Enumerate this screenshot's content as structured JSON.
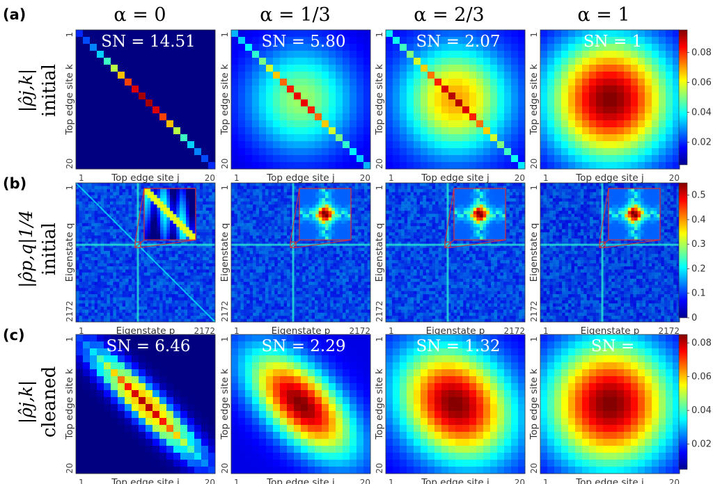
{
  "figure": {
    "column_titles": [
      "α = 0",
      "α = 1/3",
      "α = 2/3",
      "α = 1"
    ],
    "rows": [
      {
        "panel_label": "(a)",
        "ylabel_main": "|ρ̂j,k|",
        "ylabel_sub": "initial",
        "x_axis_label": "Top edge site j",
        "y_axis_label": "Top edge site k",
        "x_ticks": [
          "1",
          "20"
        ],
        "y_ticks": [
          "1",
          "20"
        ],
        "colorbar_ticks": [
          "0.08",
          "0.06",
          "0.04",
          "0.02"
        ],
        "annotations": [
          "SN = 14.51",
          "SN = 5.80",
          "SN = 2.07",
          "SN = 1"
        ]
      },
      {
        "panel_label": "(b)",
        "ylabel_main": "|ρ̂p,q|1/4",
        "ylabel_sub": "initial",
        "x_axis_label": "Eigenstate p",
        "y_axis_label": "Eigenstate q",
        "x_ticks": [
          "1",
          "2172"
        ],
        "y_ticks": [
          "1",
          "2172"
        ],
        "colorbar_ticks": [
          "0.5",
          "0.4",
          "0.3",
          "0.2",
          "0.1",
          "0"
        ],
        "annotations": [
          "",
          "",
          "",
          ""
        ]
      },
      {
        "panel_label": "(c)",
        "ylabel_main": "|ρ̂j,k|",
        "ylabel_sub": "cleaned",
        "x_axis_label": "Top edge site j",
        "y_axis_label": "Top edge site k",
        "x_ticks": [
          "1",
          "20"
        ],
        "y_ticks": [
          "1",
          "20"
        ],
        "colorbar_ticks": [
          "0.08",
          "0.06",
          "0.04",
          "0.02"
        ],
        "annotations": [
          "SN = 6.46",
          "SN = 2.29",
          "SN = 1.32",
          "SN ="
        ]
      }
    ]
  },
  "chart_data": [
    {
      "type": "heatmap",
      "panel": "(a)",
      "title": "|ρ̂j,k| initial",
      "xlabel": "Top edge site j",
      "ylabel": "Top edge site k",
      "x_range": [
        1,
        20
      ],
      "y_range": [
        1,
        20
      ],
      "colormap": "jet",
      "colorbar_range": [
        0.005,
        0.095
      ],
      "colorbar_ticks": [
        0.02,
        0.04,
        0.06,
        0.08
      ],
      "columns": [
        "α = 0",
        "α = 1/3",
        "α = 2/3",
        "α = 1"
      ],
      "S_N": [
        14.51,
        5.8,
        2.07,
        1
      ],
      "diagonal_peak": [
        0.09,
        0.09,
        0.09,
        0.09
      ]
    },
    {
      "type": "heatmap",
      "panel": "(b)",
      "title": "|ρ̂p,q|^(1/4) initial",
      "xlabel": "Eigenstate p",
      "ylabel": "Eigenstate q",
      "x_range": [
        1,
        2172
      ],
      "y_range": [
        1,
        2172
      ],
      "colormap": "jet",
      "colorbar_range": [
        0,
        0.55
      ],
      "colorbar_ticks": [
        0,
        0.1,
        0.2,
        0.3,
        0.4,
        0.5
      ],
      "columns": [
        "α = 0",
        "α = 1/3",
        "α = 2/3",
        "α = 1"
      ]
    },
    {
      "type": "heatmap",
      "panel": "(c)",
      "title": "|ρ̂j,k| cleaned",
      "xlabel": "Top edge site j",
      "ylabel": "Top edge site k",
      "x_range": [
        1,
        20
      ],
      "y_range": [
        1,
        20
      ],
      "colormap": "jet",
      "colorbar_range": [
        0.005,
        0.085
      ],
      "colorbar_ticks": [
        0.02,
        0.04,
        0.06,
        0.08
      ],
      "columns": [
        "α = 0",
        "α = 1/3",
        "α = 2/3",
        "α = 1"
      ],
      "S_N": [
        6.46,
        2.29,
        1.32,
        null
      ]
    }
  ]
}
